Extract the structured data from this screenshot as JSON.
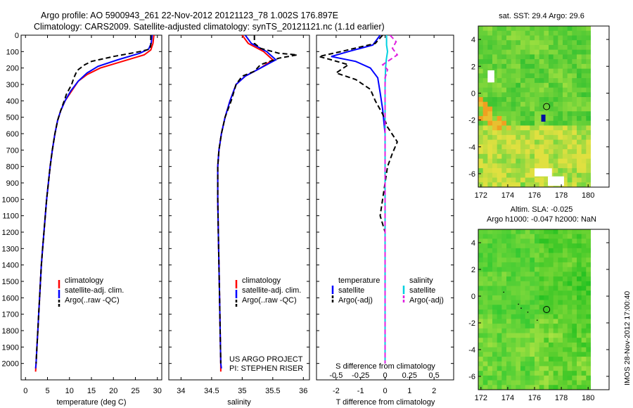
{
  "header": {
    "title_line1": "Argo profile: AO 5900943_261 22-Nov-2012 20121123_78 1.002S 176.897E",
    "title_line2": "Climatology: CARS2009. Satellite-adjusted climatology: synTS_20121121.nc (1.1d earlier)"
  },
  "credits": {
    "project": "US ARGO PROJECT",
    "pi": "PI: STEPHEN RISER",
    "imos": "IMOS 28-Nov-2012 17:00:40"
  },
  "colors": {
    "climatology": "#ff0000",
    "satellite": "#0000ff",
    "argo": "#000000",
    "sal_satellite": "#00d0e0",
    "sal_argo": "#e020e0"
  },
  "chart_data": [
    {
      "type": "line",
      "xlabel": "temperature (deg C)",
      "ylabel": "",
      "xlim": [
        -1,
        31
      ],
      "ylim": [
        2100,
        0
      ],
      "x_ticks": [
        "0",
        "5",
        "10",
        "15",
        "20",
        "25",
        "30"
      ],
      "y_ticks": [
        "0",
        "100",
        "200",
        "300",
        "400",
        "500",
        "600",
        "700",
        "800",
        "900",
        "1000",
        "1100",
        "1200",
        "1300",
        "1400",
        "1500",
        "1600",
        "1700",
        "1800",
        "1900",
        "2000"
      ],
      "legend": [
        "climatology",
        "satellite-adj. clim.",
        "Argo(..raw -QC)"
      ],
      "legend_position": "lower-center",
      "series": [
        {
          "name": "climatology",
          "color": "#ff0000",
          "points": [
            [
              29.2,
              0
            ],
            [
              29.0,
              50
            ],
            [
              28.5,
              90
            ],
            [
              27,
              120
            ],
            [
              22,
              160
            ],
            [
              17,
              200
            ],
            [
              14,
              240
            ],
            [
              12,
              280
            ],
            [
              10.5,
              340
            ],
            [
              9,
              400
            ],
            [
              8,
              460
            ],
            [
              7.3,
              520
            ],
            [
              6.7,
              600
            ],
            [
              6.1,
              700
            ],
            [
              5.6,
              800
            ],
            [
              5.2,
              900
            ],
            [
              4.8,
              1000
            ],
            [
              4.5,
              1100
            ],
            [
              4.2,
              1200
            ],
            [
              3.9,
              1300
            ],
            [
              3.6,
              1400
            ],
            [
              3.4,
              1500
            ],
            [
              3.2,
              1600
            ],
            [
              3.0,
              1700
            ],
            [
              2.8,
              1800
            ],
            [
              2.6,
              1900
            ],
            [
              2.4,
              2000
            ],
            [
              2.3,
              2050
            ]
          ]
        },
        {
          "name": "satellite-adj. clim.",
          "color": "#0000ff",
          "points": [
            [
              28.8,
              0
            ],
            [
              28.6,
              50
            ],
            [
              28,
              85
            ],
            [
              26,
              110
            ],
            [
              21,
              150
            ],
            [
              16.5,
              190
            ],
            [
              14,
              230
            ],
            [
              12,
              280
            ],
            [
              10.3,
              340
            ],
            [
              9,
              400
            ],
            [
              8,
              460
            ],
            [
              7.3,
              520
            ],
            [
              6.7,
              600
            ],
            [
              6.1,
              700
            ],
            [
              5.6,
              800
            ],
            [
              5.2,
              900
            ],
            [
              4.8,
              1000
            ],
            [
              4.5,
              1100
            ],
            [
              4.2,
              1200
            ],
            [
              3.9,
              1300
            ],
            [
              3.6,
              1400
            ],
            [
              3.4,
              1500
            ],
            [
              3.2,
              1600
            ],
            [
              3.0,
              1700
            ],
            [
              2.8,
              1800
            ],
            [
              2.6,
              1900
            ],
            [
              2.4,
              2000
            ],
            [
              2.3,
              2030
            ]
          ]
        },
        {
          "name": "Argo(..raw -QC)",
          "color": "#000000",
          "dashed": true,
          "points": [
            [
              28.5,
              0
            ],
            [
              28.5,
              60
            ],
            [
              28.3,
              85
            ],
            [
              26,
              100
            ],
            [
              24,
              110
            ],
            [
              20,
              130
            ],
            [
              15,
              160
            ],
            [
              13.5,
              180
            ],
            [
              12,
              210
            ],
            [
              11.5,
              230
            ],
            [
              11,
              260
            ],
            [
              10.5,
              300
            ],
            [
              9.3,
              360
            ],
            [
              8.8,
              400
            ],
            [
              8,
              460
            ],
            [
              7.3,
              520
            ],
            [
              6.7,
              600
            ],
            [
              6.1,
              700
            ],
            [
              5.6,
              800
            ],
            [
              5.2,
              900
            ],
            [
              4.8,
              1000
            ],
            [
              4.5,
              1100
            ],
            [
              4.2,
              1200
            ],
            [
              3.9,
              1300
            ],
            [
              3.6,
              1400
            ],
            [
              3.4,
              1500
            ],
            [
              3.2,
              1600
            ],
            [
              3.0,
              1700
            ],
            [
              2.8,
              1800
            ],
            [
              2.6,
              1900
            ],
            [
              2.4,
              2000
            ]
          ]
        }
      ]
    },
    {
      "type": "line",
      "xlabel": "salinity",
      "xlim": [
        33.8,
        36.1
      ],
      "ylim": [
        2100,
        0
      ],
      "x_ticks": [
        "34",
        "34.5",
        "35",
        "35.5",
        "36"
      ],
      "legend": [
        "climatology",
        "satellite-adj. clim.",
        "Argo(..raw -QC)"
      ],
      "legend_position": "lower-right",
      "series": [
        {
          "name": "climatology",
          "color": "#ff0000",
          "points": [
            [
              35.0,
              0
            ],
            [
              35.1,
              50
            ],
            [
              35.35,
              100
            ],
            [
              35.5,
              150
            ],
            [
              35.3,
              200
            ],
            [
              35.05,
              250
            ],
            [
              34.9,
              300
            ],
            [
              34.8,
              400
            ],
            [
              34.72,
              500
            ],
            [
              34.66,
              600
            ],
            [
              34.62,
              700
            ],
            [
              34.6,
              800
            ],
            [
              34.6,
              900
            ],
            [
              34.6,
              1000
            ],
            [
              34.61,
              1200
            ],
            [
              34.62,
              1400
            ],
            [
              34.63,
              1600
            ],
            [
              34.64,
              1800
            ],
            [
              34.65,
              2000
            ],
            [
              34.65,
              2050
            ]
          ]
        },
        {
          "name": "satellite-adj. clim.",
          "color": "#0000ff",
          "points": [
            [
              35.05,
              0
            ],
            [
              35.15,
              50
            ],
            [
              35.4,
              100
            ],
            [
              35.55,
              150
            ],
            [
              35.3,
              200
            ],
            [
              35.05,
              250
            ],
            [
              34.9,
              300
            ],
            [
              34.8,
              400
            ],
            [
              34.72,
              500
            ],
            [
              34.66,
              600
            ],
            [
              34.62,
              700
            ],
            [
              34.6,
              800
            ],
            [
              34.6,
              900
            ],
            [
              34.6,
              1000
            ],
            [
              34.61,
              1200
            ],
            [
              34.62,
              1400
            ],
            [
              34.63,
              1600
            ],
            [
              34.64,
              1800
            ],
            [
              34.65,
              2000
            ],
            [
              34.66,
              2030
            ]
          ]
        },
        {
          "name": "Argo(..raw -QC)",
          "color": "#000000",
          "dashed": true,
          "points": [
            [
              35.2,
              0
            ],
            [
              35.2,
              50
            ],
            [
              35.3,
              80
            ],
            [
              35.6,
              110
            ],
            [
              35.9,
              120
            ],
            [
              35.6,
              140
            ],
            [
              35.45,
              160
            ],
            [
              35.3,
              180
            ],
            [
              35.2,
              220
            ],
            [
              35.0,
              250
            ],
            [
              34.9,
              300
            ],
            [
              34.82,
              400
            ],
            [
              34.72,
              500
            ],
            [
              34.66,
              600
            ],
            [
              34.62,
              700
            ],
            [
              34.6,
              800
            ],
            [
              34.6,
              900
            ],
            [
              34.6,
              1000
            ],
            [
              34.61,
              1200
            ],
            [
              34.62,
              1400
            ],
            [
              34.63,
              1600
            ],
            [
              34.64,
              1800
            ],
            [
              34.65,
              2000
            ]
          ]
        }
      ]
    },
    {
      "type": "line",
      "xlabel": "T difference from climatology",
      "secondary_xlabel": "S difference from climatology",
      "xlim": [
        -2.8,
        2.8
      ],
      "ylim": [
        2100,
        0
      ],
      "x_ticks": [
        "-2",
        "-1",
        "0",
        "1",
        "2"
      ],
      "secondary_x_ticks": [
        "-0.5",
        "-0.25",
        "0",
        "0.25",
        "0.5"
      ],
      "legend_headers": [
        "temperature",
        "salinity"
      ],
      "legend": [
        "satellite",
        "Argo(-adj)",
        "satellite",
        "Argo(-adj)"
      ],
      "legend_position": "lower-center",
      "series": [
        {
          "name": "satellite",
          "group": "temperature",
          "color": "#0000ff",
          "points": [
            [
              -0.2,
              0
            ],
            [
              -0.5,
              60
            ],
            [
              -1.5,
              100
            ],
            [
              -2.2,
              130
            ],
            [
              -1.2,
              160
            ],
            [
              -0.6,
              200
            ],
            [
              -0.3,
              260
            ],
            [
              -0.2,
              350
            ],
            [
              -0.1,
              450
            ],
            [
              0,
              600
            ],
            [
              0,
              800
            ],
            [
              0,
              1000
            ],
            [
              0,
              1200
            ],
            [
              0,
              1400
            ],
            [
              0,
              1600
            ],
            [
              0,
              1800
            ],
            [
              0,
              2000
            ]
          ]
        },
        {
          "name": "Argo(-adj)",
          "group": "temperature",
          "color": "#000000",
          "dashed": true,
          "points": [
            [
              -0.1,
              0
            ],
            [
              -0.4,
              50
            ],
            [
              -1.8,
              100
            ],
            [
              -2.7,
              130
            ],
            [
              -2.2,
              150
            ],
            [
              -1.5,
              180
            ],
            [
              -2.0,
              230
            ],
            [
              -1.2,
              270
            ],
            [
              -0.6,
              330
            ],
            [
              -0.4,
              400
            ],
            [
              -0.1,
              480
            ],
            [
              0.1,
              560
            ],
            [
              0.5,
              650
            ],
            [
              0.3,
              720
            ],
            [
              0.1,
              800
            ],
            [
              0,
              900
            ],
            [
              -0.1,
              1000
            ],
            [
              -0.2,
              1100
            ],
            [
              0,
              1200
            ],
            [
              0,
              1400
            ],
            [
              0,
              1600
            ],
            [
              0,
              1800
            ],
            [
              0,
              2000
            ]
          ]
        },
        {
          "name": "satellite",
          "group": "salinity",
          "color": "#00d0e0",
          "points": [
            [
              0.06,
              0
            ],
            [
              0.06,
              60
            ],
            [
              0.1,
              100
            ],
            [
              0.05,
              150
            ],
            [
              0.02,
              200
            ],
            [
              0,
              300
            ],
            [
              0,
              500
            ],
            [
              0,
              700
            ],
            [
              0,
              1000
            ],
            [
              0,
              1300
            ],
            [
              0,
              1600
            ],
            [
              0,
              2000
            ]
          ]
        },
        {
          "name": "Argo(-adj)",
          "group": "salinity",
          "color": "#e020e0",
          "dashed": true,
          "points": [
            [
              0.2,
              0
            ],
            [
              0.45,
              40
            ],
            [
              0.3,
              80
            ],
            [
              0.5,
              120
            ],
            [
              0.2,
              150
            ],
            [
              -0.1,
              180
            ],
            [
              0.1,
              210
            ],
            [
              0,
              260
            ],
            [
              0,
              400
            ],
            [
              0,
              600
            ],
            [
              0,
              800
            ],
            [
              0,
              1000
            ],
            [
              0,
              1200
            ],
            [
              0,
              1500
            ],
            [
              0,
              1800
            ],
            [
              0,
              2000
            ]
          ]
        }
      ]
    },
    {
      "type": "heatmap",
      "title": "sat. SST: 29.4  Argo: 29.6",
      "x_ticks": [
        "172",
        "174",
        "176",
        "178",
        "180"
      ],
      "y_ticks": [
        "4",
        "2",
        "0",
        "-2",
        "-4",
        "-6"
      ],
      "xlim": [
        171.8,
        180.2
      ],
      "ylim": [
        -7,
        5
      ],
      "marker": {
        "x": 176.9,
        "y": -1.0
      }
    },
    {
      "type": "heatmap",
      "title_line1": "Altim. SLA: -0.025",
      "title_line2": "Argo h1000: -0.047 h2000: NaN",
      "x_ticks": [
        "172",
        "174",
        "176",
        "178",
        "180"
      ],
      "y_ticks": [
        "4",
        "2",
        "0",
        "-2",
        "-4",
        "-6"
      ],
      "xlim": [
        171.8,
        180.2
      ],
      "ylim": [
        -7,
        5
      ],
      "marker": {
        "x": 176.9,
        "y": -1.0
      }
    }
  ]
}
